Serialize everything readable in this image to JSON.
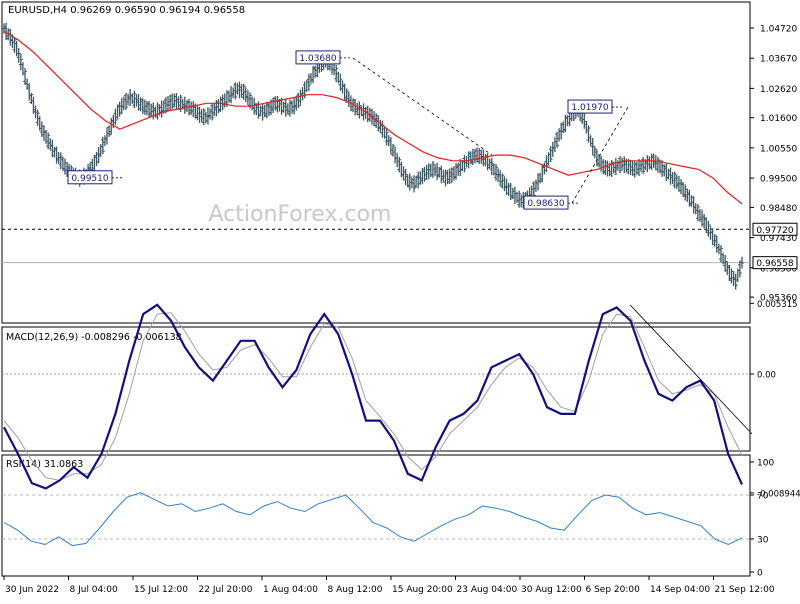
{
  "chart_data": [
    {
      "type": "candlestick",
      "symbol_header": "EURUSD,H4  0.96269 0.96590 0.96194 0.96558",
      "ylim": [
        0.9536,
        1.0502
      ],
      "y_ticks": [
        "1.04720",
        "1.03670",
        "1.02620",
        "1.01600",
        "1.00550",
        "0.99500",
        "0.98480",
        "0.97430",
        "0.96380",
        "0.95360"
      ],
      "y_tick_values": [
        1.0472,
        1.0367,
        1.0262,
        1.016,
        1.0055,
        0.995,
        0.9848,
        0.9743,
        0.9638,
        0.9536
      ],
      "x_ticks": [
        "30 Jun 2022",
        "8 Jul 04:00",
        "15 Jul 12:00",
        "22 Jul 20:00",
        "1 Aug 04:00",
        "8 Aug 12:00",
        "15 Aug 20:00",
        "23 Aug 04:00",
        "30 Aug 12:00",
        "6 Sep 20:00",
        "14 Sep 04:00",
        "21 Sep 12:00"
      ],
      "close_series": {
        "name": "",
        "values": [
          1.047,
          1.044,
          1.04,
          1.033,
          1.025,
          1.018,
          1.012,
          1.008,
          1.004,
          1.001,
          0.998,
          0.996,
          0.995,
          0.996,
          0.999,
          1.003,
          1.008,
          1.013,
          1.018,
          1.021,
          1.023,
          1.022,
          1.02,
          1.019,
          1.018,
          1.019,
          1.021,
          1.022,
          1.021,
          1.02,
          1.019,
          1.017,
          1.016,
          1.018,
          1.02,
          1.022,
          1.024,
          1.026,
          1.025,
          1.022,
          1.019,
          1.018,
          1.019,
          1.021,
          1.02,
          1.019,
          1.02,
          1.023,
          1.027,
          1.031,
          1.034,
          1.036,
          1.034,
          1.03,
          1.025,
          1.021,
          1.019,
          1.018,
          1.017,
          1.015,
          1.012,
          1.008,
          1.003,
          0.998,
          0.994,
          0.993,
          0.995,
          0.997,
          0.998,
          0.997,
          0.995,
          0.996,
          0.998,
          1.0,
          1.002,
          1.003,
          1.002,
          1.0,
          0.997,
          0.994,
          0.991,
          0.989,
          0.987,
          0.988,
          0.991,
          0.995,
          1.0,
          1.005,
          1.01,
          1.014,
          1.017,
          1.019,
          1.015,
          1.008,
          1.002,
          0.999,
          0.998,
          0.999,
          1.0,
          0.999,
          0.998,
          0.999,
          1.0,
          1.001,
          0.999,
          0.997,
          0.995,
          0.993,
          0.99,
          0.987,
          0.983,
          0.98,
          0.976,
          0.972,
          0.967,
          0.962,
          0.959,
          0.9656
        ]
      },
      "ma_series": {
        "name": "",
        "color": "#e02020",
        "values": [
          1.046,
          1.043,
          1.039,
          1.034,
          1.029,
          1.024,
          1.019,
          1.015,
          1.012,
          1.014,
          1.016,
          1.018,
          1.019,
          1.02,
          1.021,
          1.021,
          1.02,
          1.02,
          1.021,
          1.022,
          1.023,
          1.024,
          1.024,
          1.023,
          1.021,
          1.018,
          1.014,
          1.01,
          1.007,
          1.004,
          1.002,
          1.001,
          1.001,
          1.002,
          1.003,
          1.003,
          1.002,
          1.0,
          0.998,
          0.996,
          0.997,
          0.998,
          1.0,
          1.001,
          1.001,
          1.001,
          1.0,
          0.999,
          0.998,
          0.995,
          0.99,
          0.986
        ]
      },
      "labels": [
        "1.03680",
        "0.99510",
        "1.01970",
        "0.98630",
        "0.97720",
        "0.96558"
      ],
      "hlines": [
        {
          "value": 0.9772,
          "style": "dashed",
          "color": "#000000"
        },
        {
          "value": 0.96558,
          "style": "solid",
          "color": "#b0b0b0"
        }
      ],
      "watermark": "ActionForex.com"
    },
    {
      "type": "line",
      "title": "MACD(12,26,9) -0.008296 -0.006138",
      "ylim": [
        -0.0095,
        0.0058
      ],
      "y_ticks": [
        "0.005315",
        "0.00",
        "-0.008944"
      ],
      "y_tick_values": [
        0.005315,
        0.0,
        -0.008944
      ],
      "series": [
        {
          "name": "",
          "color": "#101080",
          "values": [
            -0.004,
            -0.006,
            -0.0082,
            -0.0086,
            -0.008,
            -0.007,
            -0.0078,
            -0.006,
            -0.003,
            0.001,
            0.0045,
            0.0052,
            0.004,
            0.002,
            0.0005,
            -0.0005,
            0.001,
            0.0025,
            0.0025,
            0.0005,
            -0.001,
            0.0003,
            0.003,
            0.0045,
            0.003,
            0.0,
            -0.0035,
            -0.0035,
            -0.005,
            -0.0075,
            -0.008,
            -0.0055,
            -0.0035,
            -0.003,
            -0.002,
            0.0005,
            0.001,
            0.0015,
            0.0,
            -0.0025,
            -0.003,
            -0.003,
            0.001,
            0.0045,
            0.005,
            0.004,
            0.001,
            -0.0015,
            -0.002,
            -0.001,
            -0.0005,
            -0.002,
            -0.006,
            -0.0083
          ]
        },
        {
          "name": "",
          "color": "#a0a0a0",
          "values": [
            -0.0035,
            -0.0048,
            -0.0065,
            -0.0078,
            -0.008,
            -0.0075,
            -0.0075,
            -0.0068,
            -0.0048,
            -0.0015,
            0.0025,
            0.0045,
            0.0046,
            0.0032,
            0.0015,
            0.0003,
            0.0005,
            0.0018,
            0.0022,
            0.0012,
            -0.0002,
            -0.0002,
            0.002,
            0.0038,
            0.0035,
            0.0012,
            -0.002,
            -0.0032,
            -0.0045,
            -0.0062,
            -0.0072,
            -0.0062,
            -0.0045,
            -0.0035,
            -0.0025,
            -0.0008,
            0.0005,
            0.0012,
            0.0005,
            -0.0012,
            -0.0025,
            -0.0028,
            -0.0005,
            0.003,
            0.0045,
            0.0043,
            0.002,
            -0.0005,
            -0.0015,
            -0.0012,
            -0.0008,
            -0.0015,
            -0.004,
            -0.0061
          ]
        }
      ]
    },
    {
      "type": "line",
      "title": "RSI(14) 31.0863",
      "ylim": [
        0,
        100
      ],
      "y_ticks": [
        "100",
        "70",
        "30",
        "0"
      ],
      "y_tick_values": [
        100,
        70,
        30,
        0
      ],
      "series": [
        {
          "name": "",
          "color": "#3080d0",
          "values": [
            45,
            38,
            28,
            25,
            32,
            24,
            26,
            40,
            55,
            68,
            72,
            66,
            60,
            62,
            55,
            58,
            62,
            55,
            52,
            60,
            64,
            58,
            55,
            62,
            66,
            70,
            58,
            45,
            40,
            32,
            28,
            35,
            42,
            48,
            52,
            60,
            58,
            55,
            50,
            46,
            40,
            38,
            52,
            65,
            70,
            68,
            58,
            52,
            54,
            50,
            46,
            42,
            30,
            25,
            31
          ]
        }
      ]
    }
  ]
}
